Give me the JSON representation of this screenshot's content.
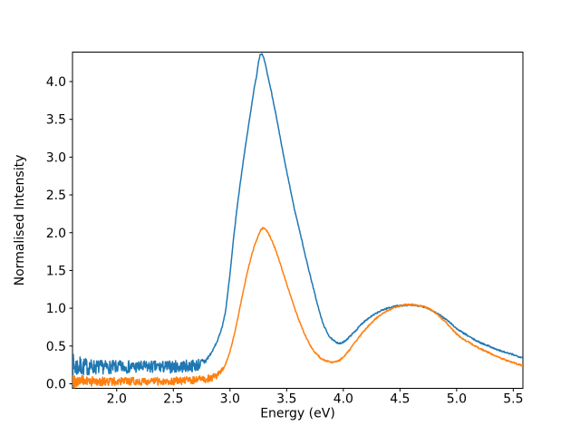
{
  "figure": {
    "background": "#ffffff",
    "plot_background": "#ffffff",
    "spine_color": "#000000"
  },
  "chart_data": {
    "type": "line",
    "title": "",
    "xlabel": "Energy (eV)",
    "ylabel": "Normalised Intensity",
    "xlim": [
      1.61,
      5.585
    ],
    "ylim": [
      -0.06,
      4.39
    ],
    "x_ticks": [
      2.0,
      2.5,
      3.0,
      3.5,
      4.0,
      4.5,
      5.0,
      5.5
    ],
    "x_tick_labels": [
      "2.0",
      "2.5",
      "3.0",
      "3.5",
      "4.0",
      "4.5",
      "5.0",
      "5.5"
    ],
    "y_ticks": [
      0.0,
      0.5,
      1.0,
      1.5,
      2.0,
      2.5,
      3.0,
      3.5,
      4.0
    ],
    "y_tick_labels": [
      "0.0",
      "0.5",
      "1.0",
      "1.5",
      "2.0",
      "2.5",
      "3.0",
      "3.5",
      "4.0"
    ],
    "grid": false,
    "legend": null,
    "series": [
      {
        "name": "series-1",
        "color": "#1f77b4",
        "line_width": 1.5,
        "baseline_level": 0.225,
        "main_peak": {
          "x": 3.28,
          "y": 4.37
        },
        "valley": {
          "x": 3.97,
          "y": 0.53
        },
        "second_peak": {
          "x": 4.58,
          "y": 1.04
        },
        "end_value": 0.345,
        "noise": {
          "region_end": 2.72,
          "base": 0.082,
          "edge_extra": 0.09,
          "edge_decay": 0.12,
          "smooth": 0.01
        },
        "points": [
          [
            1.61,
            0.23
          ],
          [
            1.7,
            0.225
          ],
          [
            1.8,
            0.222
          ],
          [
            1.9,
            0.22
          ],
          [
            2.0,
            0.222
          ],
          [
            2.1,
            0.225
          ],
          [
            2.2,
            0.221
          ],
          [
            2.3,
            0.224
          ],
          [
            2.4,
            0.222
          ],
          [
            2.5,
            0.226
          ],
          [
            2.6,
            0.231
          ],
          [
            2.68,
            0.24
          ],
          [
            2.74,
            0.262
          ],
          [
            2.79,
            0.31
          ],
          [
            2.84,
            0.42
          ],
          [
            2.89,
            0.57
          ],
          [
            2.93,
            0.75
          ],
          [
            2.96,
            0.95
          ],
          [
            3.0,
            1.45
          ],
          [
            3.03,
            1.9
          ],
          [
            3.06,
            2.3
          ],
          [
            3.09,
            2.65
          ],
          [
            3.12,
            2.98
          ],
          [
            3.15,
            3.28
          ],
          [
            3.18,
            3.58
          ],
          [
            3.21,
            3.88
          ],
          [
            3.235,
            4.08
          ],
          [
            3.25,
            4.25
          ],
          [
            3.265,
            4.355
          ],
          [
            3.28,
            4.37
          ],
          [
            3.295,
            4.32
          ],
          [
            3.31,
            4.24
          ],
          [
            3.33,
            4.1
          ],
          [
            3.36,
            3.9
          ],
          [
            3.39,
            3.68
          ],
          [
            3.42,
            3.44
          ],
          [
            3.45,
            3.2
          ],
          [
            3.48,
            2.96
          ],
          [
            3.51,
            2.74
          ],
          [
            3.54,
            2.52
          ],
          [
            3.57,
            2.3
          ],
          [
            3.6,
            2.12
          ],
          [
            3.64,
            1.86
          ],
          [
            3.68,
            1.6
          ],
          [
            3.72,
            1.36
          ],
          [
            3.76,
            1.12
          ],
          [
            3.79,
            0.95
          ],
          [
            3.82,
            0.8
          ],
          [
            3.85,
            0.7
          ],
          [
            3.88,
            0.62
          ],
          [
            3.91,
            0.575
          ],
          [
            3.94,
            0.55
          ],
          [
            3.97,
            0.53
          ],
          [
            4.0,
            0.55
          ],
          [
            4.04,
            0.6
          ],
          [
            4.08,
            0.66
          ],
          [
            4.12,
            0.72
          ],
          [
            4.16,
            0.79
          ],
          [
            4.2,
            0.845
          ],
          [
            4.25,
            0.895
          ],
          [
            4.3,
            0.94
          ],
          [
            4.35,
            0.98
          ],
          [
            4.4,
            1.005
          ],
          [
            4.45,
            1.025
          ],
          [
            4.5,
            1.035
          ],
          [
            4.55,
            1.04
          ],
          [
            4.6,
            1.04
          ],
          [
            4.65,
            1.035
          ],
          [
            4.7,
            1.02
          ],
          [
            4.75,
            1.0
          ],
          [
            4.8,
            0.955
          ],
          [
            4.85,
            0.91
          ],
          [
            4.9,
            0.86
          ],
          [
            4.95,
            0.8
          ],
          [
            5.0,
            0.73
          ],
          [
            5.05,
            0.68
          ],
          [
            5.1,
            0.635
          ],
          [
            5.15,
            0.59
          ],
          [
            5.2,
            0.55
          ],
          [
            5.25,
            0.52
          ],
          [
            5.3,
            0.49
          ],
          [
            5.35,
            0.455
          ],
          [
            5.4,
            0.43
          ],
          [
            5.45,
            0.405
          ],
          [
            5.5,
            0.385
          ],
          [
            5.55,
            0.36
          ],
          [
            5.585,
            0.345
          ]
        ]
      },
      {
        "name": "series-2",
        "color": "#ff7f0e",
        "line_width": 1.5,
        "baseline_level": 0.032,
        "main_peak": {
          "x": 3.29,
          "y": 2.06
        },
        "valley": {
          "x": 3.92,
          "y": 0.285
        },
        "second_peak": {
          "x": 4.6,
          "y": 1.05
        },
        "end_value": 0.24,
        "noise": {
          "region_end": 2.86,
          "base": 0.052,
          "edge_extra": 0.05,
          "edge_decay": 0.12,
          "smooth": 0.01
        },
        "points": [
          [
            1.61,
            0.045
          ],
          [
            1.7,
            0.035
          ],
          [
            1.8,
            0.03
          ],
          [
            1.9,
            0.03
          ],
          [
            2.0,
            0.03
          ],
          [
            2.1,
            0.031
          ],
          [
            2.2,
            0.032
          ],
          [
            2.3,
            0.03
          ],
          [
            2.4,
            0.034
          ],
          [
            2.5,
            0.038
          ],
          [
            2.6,
            0.043
          ],
          [
            2.7,
            0.05
          ],
          [
            2.78,
            0.06
          ],
          [
            2.84,
            0.08
          ],
          [
            2.88,
            0.105
          ],
          [
            2.92,
            0.16
          ],
          [
            2.95,
            0.23
          ],
          [
            2.98,
            0.33
          ],
          [
            3.01,
            0.48
          ],
          [
            3.04,
            0.67
          ],
          [
            3.07,
            0.88
          ],
          [
            3.1,
            1.1
          ],
          [
            3.13,
            1.32
          ],
          [
            3.16,
            1.52
          ],
          [
            3.19,
            1.7
          ],
          [
            3.22,
            1.85
          ],
          [
            3.25,
            1.96
          ],
          [
            3.27,
            2.03
          ],
          [
            3.29,
            2.06
          ],
          [
            3.31,
            2.05
          ],
          [
            3.33,
            2.01
          ],
          [
            3.36,
            1.93
          ],
          [
            3.39,
            1.82
          ],
          [
            3.42,
            1.7
          ],
          [
            3.45,
            1.56
          ],
          [
            3.48,
            1.42
          ],
          [
            3.51,
            1.28
          ],
          [
            3.54,
            1.14
          ],
          [
            3.57,
            1.0
          ],
          [
            3.6,
            0.88
          ],
          [
            3.64,
            0.72
          ],
          [
            3.68,
            0.59
          ],
          [
            3.72,
            0.48
          ],
          [
            3.76,
            0.4
          ],
          [
            3.8,
            0.34
          ],
          [
            3.84,
            0.305
          ],
          [
            3.88,
            0.29
          ],
          [
            3.92,
            0.285
          ],
          [
            3.96,
            0.305
          ],
          [
            4.0,
            0.35
          ],
          [
            4.04,
            0.42
          ],
          [
            4.08,
            0.5
          ],
          [
            4.12,
            0.58
          ],
          [
            4.16,
            0.66
          ],
          [
            4.2,
            0.73
          ],
          [
            4.25,
            0.81
          ],
          [
            4.3,
            0.88
          ],
          [
            4.35,
            0.935
          ],
          [
            4.4,
            0.975
          ],
          [
            4.45,
            1.01
          ],
          [
            4.5,
            1.03
          ],
          [
            4.55,
            1.045
          ],
          [
            4.6,
            1.05
          ],
          [
            4.65,
            1.04
          ],
          [
            4.7,
            1.025
          ],
          [
            4.75,
            1.0
          ],
          [
            4.8,
            0.955
          ],
          [
            4.85,
            0.89
          ],
          [
            4.9,
            0.82
          ],
          [
            4.95,
            0.74
          ],
          [
            5.0,
            0.66
          ],
          [
            5.05,
            0.6
          ],
          [
            5.1,
            0.555
          ],
          [
            5.15,
            0.51
          ],
          [
            5.2,
            0.47
          ],
          [
            5.25,
            0.435
          ],
          [
            5.3,
            0.4
          ],
          [
            5.35,
            0.365
          ],
          [
            5.4,
            0.335
          ],
          [
            5.45,
            0.305
          ],
          [
            5.5,
            0.28
          ],
          [
            5.55,
            0.255
          ],
          [
            5.585,
            0.24
          ]
        ]
      }
    ]
  }
}
